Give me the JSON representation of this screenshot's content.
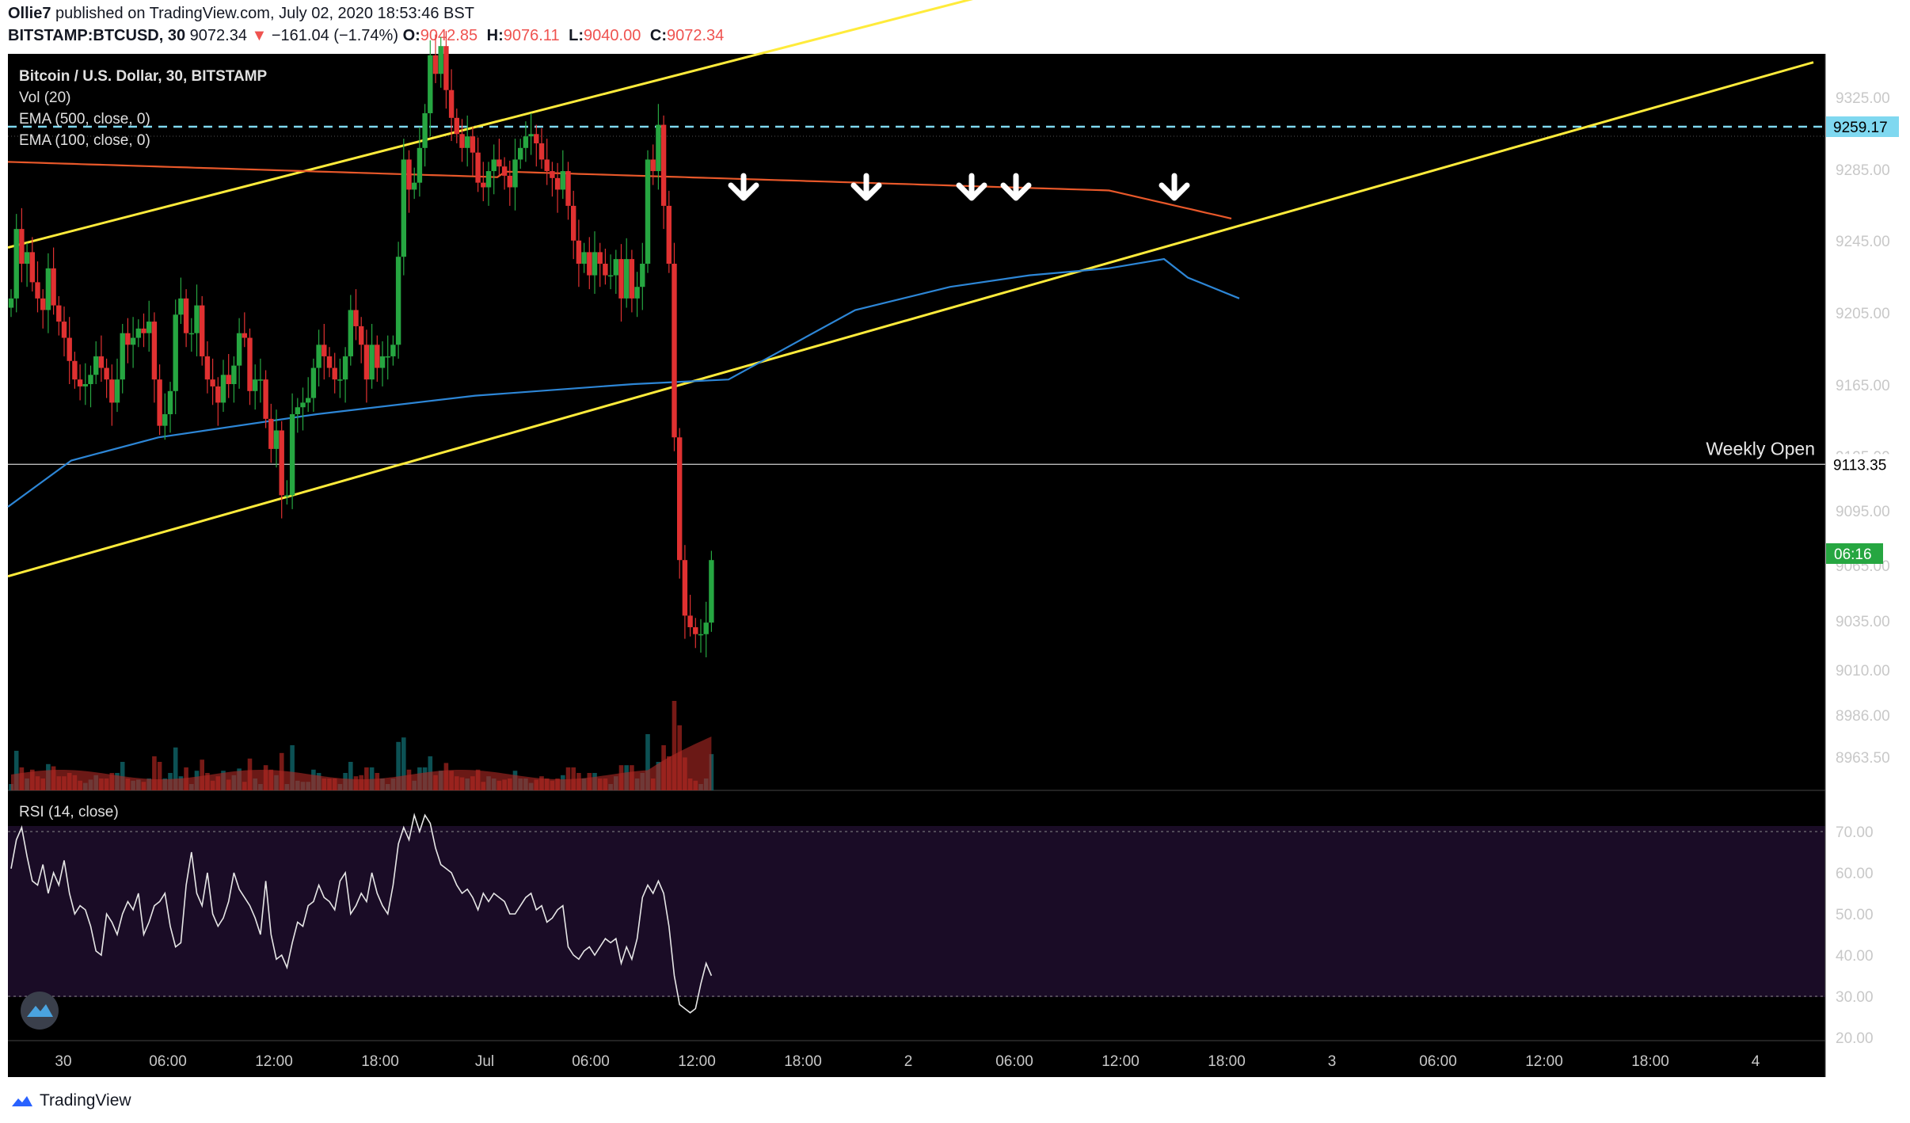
{
  "header": {
    "published_by_user": "Ollie7",
    "published_text": "published on TradingView.com, July 02, 2020 18:53:46 BST",
    "symbol": "BITSTAMP:BTCUSD, 30",
    "last": "9072.34",
    "change_arrow": "▼",
    "change": "−161.04 (−1.74%)",
    "ohlc": [
      {
        "label": "O:",
        "value": "9042.85"
      },
      {
        "label": "H:",
        "value": "9076.11"
      },
      {
        "label": "L:",
        "value": "9040.00"
      },
      {
        "label": "C:",
        "value": "9072.34"
      }
    ]
  },
  "legend": {
    "main": "Bitcoin / U.S. Dollar, 30, BITSTAMP",
    "vol": "Vol (20)",
    "ema500": "EMA (500, close, 0)",
    "ema100": "EMA (100, close, 0)",
    "rsi": "RSI (14, close)"
  },
  "annotations": {
    "weekly_open_label": "Weekly Open",
    "weekly_open_price": "9113.35",
    "resistance_price": "9259.17",
    "countdown": "06:16"
  },
  "footer": {
    "brand": "TradingView"
  },
  "colors": {
    "background": "#000000",
    "up": "#26a641",
    "down": "#e03131",
    "channel": "#ffeb3b",
    "resistance": "#7fd8f0",
    "ema100": "#2d86d6",
    "ema500": "#e8582a",
    "rsi_band": "#1a0c26",
    "text": "#d1d4dc"
  },
  "chart_data": {
    "type": "candlestick",
    "interval": "30",
    "price_axis_labels": [
      "9325.00",
      "9285.00",
      "9245.00",
      "9205.00",
      "9165.00",
      "9125.00",
      "9095.00",
      "9065.00",
      "9035.00",
      "9010.00",
      "8986.00",
      "8963.50"
    ],
    "time_axis_labels": [
      "30",
      "06:00",
      "12:00",
      "18:00",
      "Jul",
      "06:00",
      "12:00",
      "18:00",
      "2",
      "06:00",
      "12:00",
      "18:00",
      "3",
      "06:00",
      "12:00",
      "18:00",
      "4"
    ],
    "rsi_axis_labels": [
      "70.00",
      "60.00",
      "50.00",
      "40.00",
      "30.00",
      "20.00"
    ],
    "rsi_levels": [
      70,
      30
    ],
    "weekly_open": 9113.35,
    "resistance_level": 9259.17,
    "resistance_arrows_count": 5,
    "channel_upper": [
      [
        "30 00:00",
        9207
      ],
      [
        "Jul 1 ~19:00",
        9363
      ]
    ],
    "channel_lower": [
      [
        "30 00:00",
        9065
      ],
      [
        "Jul 3 ~20:00",
        9287
      ]
    ],
    "candles_close": [
      9185,
      9215,
      9200,
      9205,
      9192,
      9185,
      9180,
      9198,
      9182,
      9175,
      9168,
      9158,
      9150,
      9147,
      9148,
      9152,
      9160,
      9155,
      9150,
      9140,
      9150,
      9170,
      9165,
      9168,
      9172,
      9170,
      9175,
      9150,
      9130,
      9135,
      9145,
      9178,
      9185,
      9170,
      9170,
      9182,
      9160,
      9150,
      9147,
      9140,
      9152,
      9148,
      9156,
      9170,
      9168,
      9145,
      9150,
      9150,
      9133,
      9120,
      9128,
      9100,
      9100,
      9135,
      9138,
      9140,
      9142,
      9155,
      9165,
      9160,
      9155,
      9150,
      9150,
      9160,
      9180,
      9173,
      9165,
      9150,
      9165,
      9155,
      9160,
      9160,
      9165,
      9203,
      9245,
      9232,
      9235,
      9250,
      9265,
      9290,
      9282,
      9294,
      9275,
      9263,
      9256,
      9250,
      9255,
      9248,
      9235,
      9233,
      9240,
      9245,
      9242,
      9238,
      9233,
      9245,
      9250,
      9255,
      9256,
      9252,
      9245,
      9240,
      9237,
      9232,
      9240,
      9225,
      9210,
      9200,
      9205,
      9195,
      9205,
      9200,
      9195,
      9195,
      9202,
      9185,
      9202,
      9185,
      9190,
      9200,
      9245,
      9240,
      9260,
      9225,
      9200,
      9125,
      9072,
      9048,
      9043,
      9040,
      9040,
      9045,
      9072
    ],
    "rsi_values": [
      61,
      68,
      71,
      64,
      58,
      57,
      62,
      55,
      60,
      57,
      63,
      55,
      50,
      52,
      51,
      47,
      41,
      40,
      50,
      48,
      45,
      50,
      53,
      51,
      55,
      45,
      48,
      52,
      53,
      55,
      47,
      42,
      43,
      57,
      65,
      55,
      52,
      60,
      50,
      47,
      49,
      53,
      60,
      56,
      54,
      52,
      49,
      45,
      58,
      45,
      39,
      40,
      37,
      43,
      48,
      47,
      52,
      53,
      57,
      54,
      53,
      51,
      58,
      60,
      50,
      52,
      55,
      53,
      60,
      55,
      52,
      50,
      57,
      67,
      71,
      68,
      74,
      70,
      74,
      72,
      66,
      62,
      61,
      60,
      57,
      55,
      56,
      54,
      51,
      55,
      53,
      55,
      54,
      53,
      50,
      50,
      52,
      54,
      55,
      51,
      52,
      48,
      49,
      51,
      52,
      42,
      40,
      39,
      41,
      42,
      40,
      42,
      44,
      43,
      44,
      38,
      42,
      39,
      44,
      54,
      57,
      55,
      58,
      55,
      47,
      35,
      28,
      27,
      26,
      27,
      33,
      38,
      35
    ]
  }
}
